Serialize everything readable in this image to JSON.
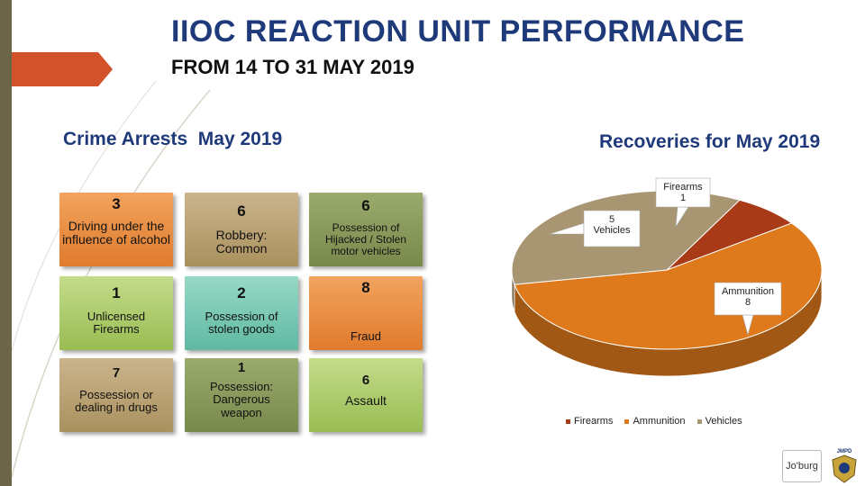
{
  "header": {
    "title": "IIOC REACTION UNIT PERFORMANCE",
    "subtitle": "FROM 14 TO 31 MAY 2019"
  },
  "arrests": {
    "heading": "Crime Arrests  May 2019",
    "tiles": [
      {
        "count": "3",
        "label": "Driving under the influence of alcohol"
      },
      {
        "count": "6",
        "label": "Robbery: Common"
      },
      {
        "count": "6",
        "label": "Possession of Hijacked / Stolen motor vehicles"
      },
      {
        "count": "1",
        "label": "Unlicensed Firearms"
      },
      {
        "count": "2",
        "label": "Possession of stolen goods"
      },
      {
        "count": "8",
        "label": "Fraud"
      },
      {
        "count": "7",
        "label": "Possession or dealing in drugs"
      },
      {
        "count": "1",
        "label": "Possession: Dangerous weapon"
      },
      {
        "count": "6",
        "label": "Assault"
      }
    ]
  },
  "chart_data": {
    "type": "pie",
    "title": "Recoveries for May 2019",
    "categories": [
      "Firearms",
      "Ammunition",
      "Vehicles"
    ],
    "values": [
      1,
      8,
      5
    ],
    "colors": [
      "#a83a17",
      "#de7a1c",
      "#a89672"
    ],
    "legend_position": "bottom",
    "three_d": true
  },
  "footer": {
    "logo_text": "Jo'burg",
    "badge_text": "JMPD"
  }
}
